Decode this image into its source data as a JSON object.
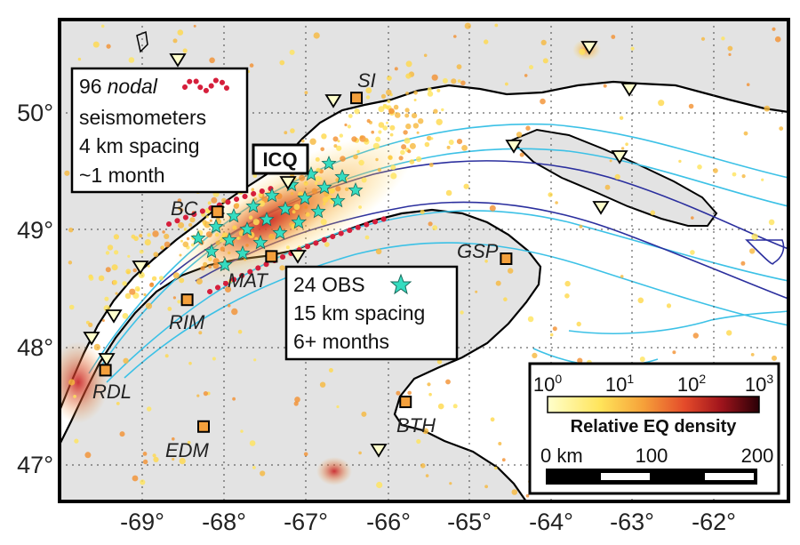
{
  "map": {
    "lat_ticks": [
      "50°",
      "49°",
      "48°",
      "47°"
    ],
    "lon_ticks": [
      "-69°",
      "-68°",
      "-67°",
      "-66°",
      "-65°",
      "-64°",
      "-63°",
      "-62°"
    ],
    "colors": {
      "land": "#e3e3e3",
      "water": "#ffffff",
      "coast": "#000000",
      "bathy_light": "#3cc1e6",
      "bathy_dark": "#2b2f9e",
      "nodal_line": "#d61f3c",
      "obs_star": "#35dcc0",
      "station_fill": "#f4a03c"
    }
  },
  "nodal_box": {
    "count": "96",
    "word": "nodal",
    "line2": "seismometers",
    "line3": "4 km spacing",
    "line4": "~1 month"
  },
  "obs_box": {
    "line1": "24 OBS",
    "line2": "15 km spacing",
    "line3": "6+ months"
  },
  "icq_label": "ICQ",
  "stations": [
    {
      "code": "SI",
      "lat": 50.12,
      "lon": -66.38
    },
    {
      "code": "BC",
      "lat": 49.15,
      "lon": -68.08
    },
    {
      "code": "MAT",
      "lat": 48.77,
      "lon": -67.42
    },
    {
      "code": "GSP",
      "lat": 48.75,
      "lon": -64.55
    },
    {
      "code": "RIM",
      "lat": 48.4,
      "lon": -68.45
    },
    {
      "code": "RDL",
      "lat": 47.8,
      "lon": -69.45
    },
    {
      "code": "EDM",
      "lat": 47.32,
      "lon": -68.25
    },
    {
      "code": "BTH",
      "lat": 47.53,
      "lon": -65.78
    }
  ],
  "colorbar": {
    "ticks": [
      "10",
      "10",
      "10",
      "10"
    ],
    "exponents": [
      "0",
      "1",
      "2",
      "3"
    ],
    "title": "Relative EQ density"
  },
  "scalebar": {
    "labels": [
      "0 km",
      "100",
      "200"
    ]
  }
}
